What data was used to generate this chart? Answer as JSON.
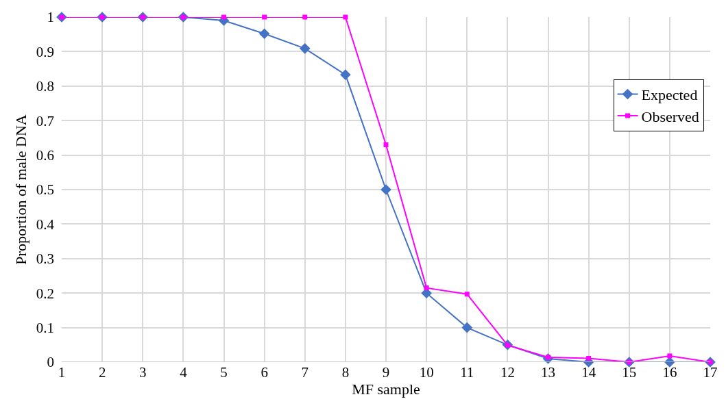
{
  "chart_data": {
    "type": "line",
    "xlabel": "MF sample",
    "ylabel": "Proportion of male DNA",
    "x": [
      1,
      2,
      3,
      4,
      5,
      6,
      7,
      8,
      9,
      10,
      11,
      12,
      13,
      14,
      15,
      16,
      17
    ],
    "xlim": [
      1,
      17
    ],
    "xticks": [
      1,
      2,
      3,
      4,
      5,
      6,
      7,
      8,
      9,
      10,
      11,
      12,
      13,
      14,
      15,
      16,
      17
    ],
    "ylim": [
      0,
      1
    ],
    "yticks": [
      0,
      0.1,
      0.2,
      0.3,
      0.4,
      0.5,
      0.6,
      0.7,
      0.8,
      0.9,
      1
    ],
    "grid": true,
    "legend": "top right",
    "series": [
      {
        "name": "Expected",
        "color": "#4472c4",
        "marker": "diamond",
        "values": [
          1,
          1,
          1,
          1,
          0.99,
          0.952,
          0.909,
          0.833,
          0.5,
          0.2,
          0.1,
          0.05,
          0.01,
          0,
          0,
          0,
          0
        ]
      },
      {
        "name": "Observed",
        "color": "#ff00ff",
        "marker": "square",
        "values": [
          1,
          1,
          1,
          1,
          1,
          1,
          1,
          1,
          0.63,
          0.215,
          0.197,
          0.049,
          0.014,
          0.011,
          0,
          0.018,
          0
        ]
      }
    ]
  }
}
